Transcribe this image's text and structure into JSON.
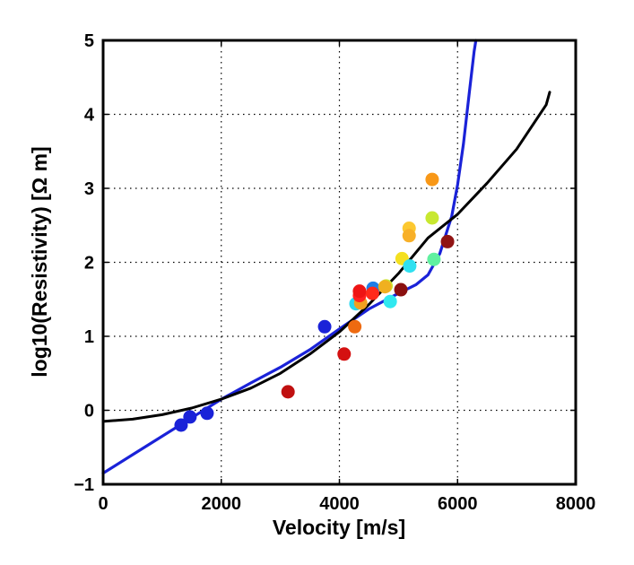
{
  "chart_data": {
    "type": "scatter",
    "xlabel": "Velocity [m/s]",
    "ylabel": "log10(Resistivity) [Ω m]",
    "xlim": [
      0,
      8000
    ],
    "ylim": [
      -1,
      5
    ],
    "xticks": [
      "0",
      "2000",
      "4000",
      "6000",
      "8000"
    ],
    "yticks": [
      "−1",
      "0",
      "1",
      "2",
      "3",
      "4",
      "5"
    ],
    "grid": true,
    "points": [
      {
        "x": 1320,
        "y": -0.2,
        "color": "#1a22d8"
      },
      {
        "x": 1470,
        "y": -0.09,
        "color": "#1a22d8"
      },
      {
        "x": 1760,
        "y": -0.04,
        "color": "#1a22d8"
      },
      {
        "x": 3130,
        "y": 0.25,
        "color": "#c01010"
      },
      {
        "x": 3750,
        "y": 1.13,
        "color": "#1a22d8"
      },
      {
        "x": 4080,
        "y": 0.76,
        "color": "#d41010"
      },
      {
        "x": 4280,
        "y": 1.44,
        "color": "#2ad8f0"
      },
      {
        "x": 4260,
        "y": 1.13,
        "color": "#ee6a10"
      },
      {
        "x": 4360,
        "y": 1.45,
        "color": "#f0a020"
      },
      {
        "x": 4340,
        "y": 1.55,
        "color": "#ff2020"
      },
      {
        "x": 4340,
        "y": 1.61,
        "color": "#ee1414"
      },
      {
        "x": 4570,
        "y": 1.65,
        "color": "#1e7ee8"
      },
      {
        "x": 4560,
        "y": 1.58,
        "color": "#ff2a1a"
      },
      {
        "x": 4790,
        "y": 1.68,
        "color": "#c8e830"
      },
      {
        "x": 4770,
        "y": 1.67,
        "color": "#f0b020"
      },
      {
        "x": 4860,
        "y": 1.47,
        "color": "#30e8f0"
      },
      {
        "x": 5040,
        "y": 1.63,
        "color": "#8a1010"
      },
      {
        "x": 5060,
        "y": 2.05,
        "color": "#f4e020"
      },
      {
        "x": 5180,
        "y": 2.46,
        "color": "#fcc830"
      },
      {
        "x": 5180,
        "y": 2.36,
        "color": "#f8b028"
      },
      {
        "x": 5190,
        "y": 1.95,
        "color": "#30e0f0"
      },
      {
        "x": 5570,
        "y": 3.12,
        "color": "#f89818"
      },
      {
        "x": 5570,
        "y": 2.6,
        "color": "#c8e830"
      },
      {
        "x": 5600,
        "y": 2.04,
        "color": "#60f0a0"
      },
      {
        "x": 5830,
        "y": 2.28,
        "color": "#901414"
      }
    ],
    "series": [
      {
        "type": "line",
        "color": "#1a22d8",
        "x": [
          0,
          500,
          1000,
          1500,
          2000,
          2500,
          3000,
          3500,
          4000,
          4500,
          5000,
          5300,
          5500,
          5700,
          5900,
          6000,
          6100,
          6200,
          6280,
          6310
        ],
        "y": [
          -0.85,
          -0.6,
          -0.35,
          -0.1,
          0.15,
          0.37,
          0.58,
          0.82,
          1.1,
          1.37,
          1.58,
          1.7,
          1.83,
          2.12,
          2.62,
          3.05,
          3.6,
          4.3,
          4.85,
          5.0
        ]
      },
      {
        "type": "line",
        "color": "#000000",
        "x": [
          0,
          500,
          1000,
          1500,
          2000,
          2500,
          3000,
          3500,
          4000,
          4500,
          5000,
          5500,
          6000,
          6500,
          7000,
          7500,
          7560
        ],
        "y": [
          -0.15,
          -0.12,
          -0.06,
          0.03,
          0.15,
          0.3,
          0.5,
          0.76,
          1.06,
          1.43,
          1.85,
          2.33,
          2.65,
          3.07,
          3.53,
          4.13,
          4.3
        ]
      }
    ]
  }
}
